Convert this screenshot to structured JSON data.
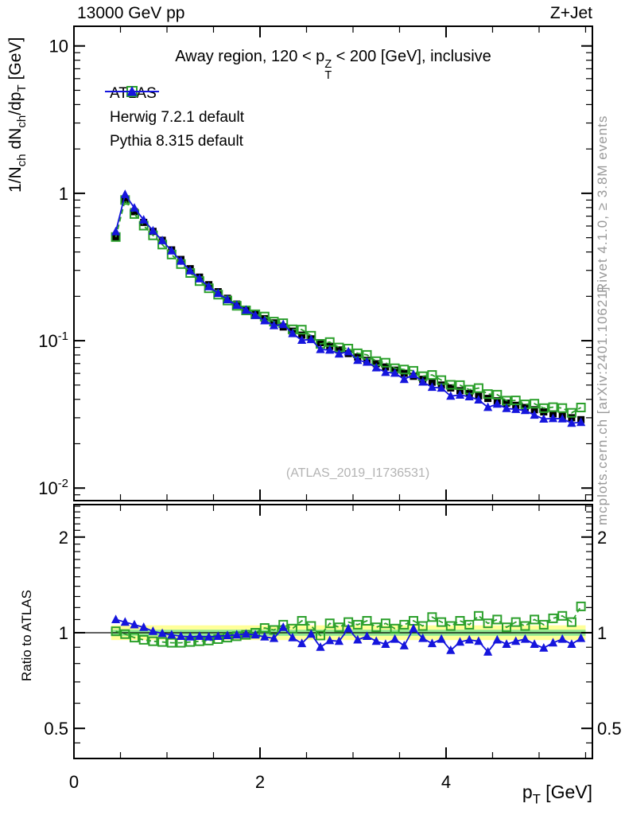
{
  "header": {
    "left": "13000 GeV pp",
    "right": "Z+Jet"
  },
  "plot_title": "Away region, 120 < p_{T}^{Z} < 200 [GeV], inclusive",
  "watermark": "(ATLAS_2019_I1736531)",
  "side_notes": {
    "top": "Rivet 4.1.0, ≥ 3.8M events",
    "bottom": "mcplots.cern.ch [arXiv:2401.10621]"
  },
  "legend": {
    "items": [
      {
        "label": "ATLAS",
        "marker": "filled-square",
        "line": "none",
        "color": "#000000"
      },
      {
        "label": "Herwig 7.2.1 default",
        "marker": "open-square",
        "line": "dashed",
        "color": "#2ca02c"
      },
      {
        "label": "Pythia 8.315 default",
        "marker": "filled-triangle",
        "line": "solid",
        "color": "#1515dd"
      }
    ]
  },
  "axes": {
    "x_ticks": {
      "major": [
        {
          "v": 0,
          "label": "0"
        },
        {
          "v": 2,
          "label": "2"
        },
        {
          "v": 4,
          "label": "4"
        }
      ],
      "minor_step": 0.5
    },
    "main_y_ticks": {
      "major": [
        {
          "v": 10,
          "label": "10"
        },
        {
          "v": 1,
          "label": "1"
        },
        {
          "v": 0.1,
          "label": "10^{-1}"
        },
        {
          "v": 0.01,
          "label": "10^{-2}"
        }
      ]
    },
    "ratio_y_ticks": {
      "major": [
        {
          "v": 2,
          "label": "2"
        },
        {
          "v": 1,
          "label": "1"
        },
        {
          "v": 0.5,
          "label": "0.5"
        }
      ],
      "minor": [
        0.4,
        0.45,
        0.6,
        0.7,
        0.8,
        0.9,
        1.1,
        1.2,
        1.3,
        1.4,
        1.5,
        1.6,
        1.7,
        1.8,
        1.9,
        2.1,
        2.2,
        2.3,
        2.4,
        2.5
      ]
    }
  },
  "chart_data": {
    "type": "line",
    "title": "Away region, 120 < p_T^Z < 200 [GeV], inclusive",
    "xlabel": "p_{T} [GeV]",
    "ylabel": "1/N_{ch} dN_{ch}/dp_{T} [GeV]",
    "ratio_ylabel": "Ratio to ATLAS",
    "yscale": "log",
    "xlim": [
      0,
      5.573
    ],
    "ylim_main": [
      0.00822,
      13.6
    ],
    "ylim_ratio": [
      0.402,
      2.53
    ],
    "x": [
      0.45,
      0.55,
      0.65,
      0.75,
      0.85,
      0.95,
      1.05,
      1.15,
      1.25,
      1.35,
      1.45,
      1.55,
      1.65,
      1.75,
      1.85,
      1.95,
      2.05,
      2.15,
      2.25,
      2.35,
      2.45,
      2.55,
      2.65,
      2.75,
      2.85,
      2.95,
      3.05,
      3.15,
      3.25,
      3.35,
      3.45,
      3.55,
      3.65,
      3.75,
      3.85,
      3.95,
      4.05,
      4.15,
      4.25,
      4.35,
      4.45,
      4.55,
      4.65,
      4.75,
      4.85,
      4.95,
      5.05,
      5.15,
      5.25,
      5.35,
      5.45
    ],
    "series": [
      {
        "name": "ATLAS",
        "color": "#000000",
        "marker": "filled-square",
        "line": "none",
        "values": [
          0.5,
          0.91,
          0.75,
          0.635,
          0.552,
          0.48,
          0.413,
          0.356,
          0.308,
          0.27,
          0.24,
          0.215,
          0.194,
          0.177,
          0.163,
          0.151,
          0.141,
          0.132,
          0.124,
          0.116,
          0.109,
          0.103,
          0.097,
          0.0915,
          0.0865,
          0.0818,
          0.0775,
          0.0735,
          0.0698,
          0.0663,
          0.0631,
          0.0601,
          0.0573,
          0.0547,
          0.0523,
          0.05,
          0.0478,
          0.0458,
          0.0439,
          0.0422,
          0.0406,
          0.0391,
          0.0377,
          0.0364,
          0.0352,
          0.034,
          0.0329,
          0.0319,
          0.0309,
          0.03,
          0.0291
        ]
      },
      {
        "name": "Herwig 7.2.1 default",
        "color": "#2ca02c",
        "marker": "open-square",
        "line": "dashed",
        "ratio_to_atlas": [
          1.01,
          0.99,
          0.965,
          0.95,
          0.94,
          0.935,
          0.93,
          0.93,
          0.935,
          0.94,
          0.945,
          0.955,
          0.965,
          0.975,
          0.985,
          1.0,
          1.035,
          1.02,
          1.06,
          1.03,
          1.09,
          1.05,
          0.98,
          1.07,
          1.04,
          1.08,
          1.06,
          1.09,
          1.04,
          1.07,
          1.03,
          1.06,
          1.09,
          1.05,
          1.12,
          1.08,
          1.05,
          1.09,
          1.06,
          1.13,
          1.07,
          1.1,
          1.04,
          1.08,
          1.05,
          1.1,
          1.06,
          1.11,
          1.13,
          1.08,
          1.21
        ]
      },
      {
        "name": "Pythia 8.315 default",
        "color": "#1515dd",
        "marker": "filled-triangle",
        "line": "solid",
        "ratio_to_atlas": [
          1.1,
          1.08,
          1.06,
          1.04,
          1.01,
          0.995,
          0.985,
          0.975,
          0.97,
          0.975,
          0.97,
          0.975,
          0.98,
          0.985,
          0.99,
          0.985,
          0.97,
          0.96,
          1.04,
          0.965,
          0.925,
          0.99,
          0.9,
          0.945,
          0.94,
          1.03,
          0.95,
          0.975,
          0.94,
          0.92,
          0.955,
          0.91,
          1.03,
          0.96,
          0.925,
          0.955,
          0.88,
          0.935,
          0.95,
          0.94,
          0.87,
          0.95,
          0.92,
          0.94,
          0.955,
          0.92,
          0.895,
          0.93,
          0.955,
          0.92,
          0.96
        ]
      }
    ],
    "bands": {
      "yellow": {
        "color": "#ffff99",
        "range": [
          0.948,
          1.055
        ]
      },
      "green": {
        "color": "#90e890",
        "range": [
          0.978,
          1.022
        ]
      }
    },
    "reference_line": 1
  }
}
